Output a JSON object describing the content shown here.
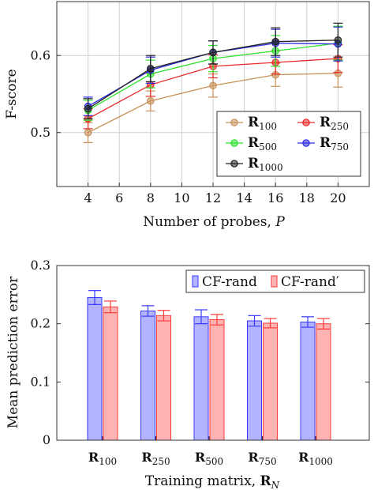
{
  "chart_data": [
    {
      "type": "line",
      "xlabel": "Number of probes, P",
      "ylabel": "F-score",
      "x": [
        4,
        8,
        12,
        16,
        20
      ],
      "xlim": [
        2,
        22
      ],
      "ylim": [
        0.43,
        0.67
      ],
      "xticks": [
        "4",
        "6",
        "8",
        "10",
        "12",
        "14",
        "16",
        "18",
        "20"
      ],
      "yticks": [
        "0.5",
        "0.6"
      ],
      "grid": true,
      "legend_position": "bottom-right",
      "series": [
        {
          "name": "R100",
          "name_main": "R",
          "name_sub": "100",
          "color": "#c8915a",
          "values": [
            0.5,
            0.541,
            0.561,
            0.575,
            0.577
          ],
          "errors": [
            0.013,
            0.013,
            0.015,
            0.015,
            0.018
          ]
        },
        {
          "name": "R250",
          "name_main": "R",
          "name_sub": "250",
          "color": "#e82a2a",
          "values": [
            0.518,
            0.562,
            0.586,
            0.591,
            0.596
          ],
          "errors": [
            0.013,
            0.015,
            0.015,
            0.015,
            0.018
          ]
        },
        {
          "name": "R500",
          "name_main": "R",
          "name_sub": "500",
          "color": "#2de22d",
          "values": [
            0.529,
            0.576,
            0.596,
            0.606,
            0.616
          ],
          "errors": [
            0.013,
            0.018,
            0.017,
            0.02,
            0.022
          ]
        },
        {
          "name": "R750",
          "name_main": "R",
          "name_sub": "750",
          "color": "#2a2ae0",
          "values": [
            0.534,
            0.581,
            0.604,
            0.616,
            0.615
          ],
          "errors": [
            0.012,
            0.017,
            0.015,
            0.018,
            0.022
          ]
        },
        {
          "name": "R1000",
          "name_main": "R",
          "name_sub": "1000",
          "color": "#222222",
          "values": [
            0.531,
            0.583,
            0.604,
            0.618,
            0.62
          ],
          "errors": [
            0.013,
            0.017,
            0.015,
            0.018,
            0.022
          ]
        }
      ]
    },
    {
      "type": "bar",
      "xlabel": "Training matrix, RN",
      "xlabel_text": "Training matrix, ",
      "xlabel_main": "R",
      "xlabel_sub": "N",
      "ylabel": "Mean prediction error",
      "ylim": [
        0,
        0.3
      ],
      "yticks": [
        "0",
        "0.1",
        "0.2",
        "0.3"
      ],
      "categories": [
        "R100",
        "R250",
        "R500",
        "R750",
        "R1000"
      ],
      "category_main": [
        "R",
        "R",
        "R",
        "R",
        "R"
      ],
      "category_sub": [
        "100",
        "250",
        "500",
        "750",
        "1000"
      ],
      "legend_position": "top-right",
      "series": [
        {
          "name": "CF-rand",
          "fill": "#b3b3ff",
          "stroke": "#3a3aff",
          "values": [
            0.245,
            0.222,
            0.212,
            0.205,
            0.203
          ],
          "errors": [
            0.012,
            0.009,
            0.012,
            0.009,
            0.009
          ]
        },
        {
          "name": "CF-rand′",
          "fill": "#ffb3b3",
          "stroke": "#ff3a3a",
          "values": [
            0.229,
            0.214,
            0.207,
            0.201,
            0.2
          ],
          "errors": [
            0.01,
            0.009,
            0.009,
            0.008,
            0.009
          ]
        }
      ]
    }
  ]
}
